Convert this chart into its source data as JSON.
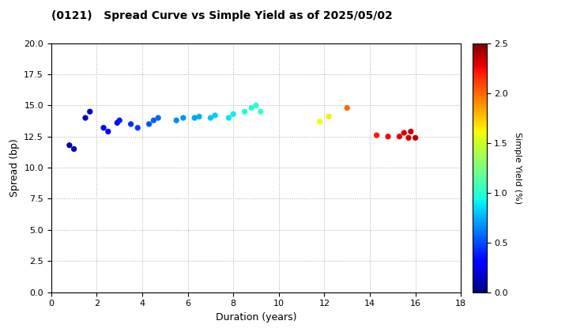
{
  "title": "(0121)   Spread Curve vs Simple Yield as of 2025/05/02",
  "xlabel": "Duration (years)",
  "ylabel": "Spread (bp)",
  "colorbar_label": "Simple Yield (%)",
  "xlim": [
    0,
    18
  ],
  "ylim": [
    0.0,
    20.0
  ],
  "yticks": [
    0.0,
    2.5,
    5.0,
    7.5,
    10.0,
    12.5,
    15.0,
    17.5,
    20.0
  ],
  "xticks": [
    0,
    2,
    4,
    6,
    8,
    10,
    12,
    14,
    16,
    18
  ],
  "colorbar_range": [
    0.0,
    2.5
  ],
  "colorbar_ticks": [
    0.0,
    0.5,
    1.0,
    1.5,
    2.0,
    2.5
  ],
  "points": [
    {
      "duration": 0.8,
      "spread": 11.8,
      "yield": 0.12
    },
    {
      "duration": 1.0,
      "spread": 11.5,
      "yield": 0.13
    },
    {
      "duration": 1.5,
      "spread": 14.0,
      "yield": 0.18
    },
    {
      "duration": 1.7,
      "spread": 14.5,
      "yield": 0.2
    },
    {
      "duration": 2.3,
      "spread": 13.2,
      "yield": 0.27
    },
    {
      "duration": 2.5,
      "spread": 12.9,
      "yield": 0.3
    },
    {
      "duration": 2.9,
      "spread": 13.6,
      "yield": 0.35
    },
    {
      "duration": 3.0,
      "spread": 13.8,
      "yield": 0.38
    },
    {
      "duration": 3.5,
      "spread": 13.5,
      "yield": 0.43
    },
    {
      "duration": 3.8,
      "spread": 13.2,
      "yield": 0.46
    },
    {
      "duration": 4.3,
      "spread": 13.5,
      "yield": 0.52
    },
    {
      "duration": 4.5,
      "spread": 13.8,
      "yield": 0.55
    },
    {
      "duration": 4.7,
      "spread": 14.0,
      "yield": 0.57
    },
    {
      "duration": 5.5,
      "spread": 13.8,
      "yield": 0.65
    },
    {
      "duration": 5.8,
      "spread": 14.0,
      "yield": 0.68
    },
    {
      "duration": 6.3,
      "spread": 14.0,
      "yield": 0.72
    },
    {
      "duration": 6.5,
      "spread": 14.1,
      "yield": 0.74
    },
    {
      "duration": 7.0,
      "spread": 14.0,
      "yield": 0.8
    },
    {
      "duration": 7.2,
      "spread": 14.2,
      "yield": 0.82
    },
    {
      "duration": 7.8,
      "spread": 14.0,
      "yield": 0.88
    },
    {
      "duration": 8.0,
      "spread": 14.3,
      "yield": 0.9
    },
    {
      "duration": 8.5,
      "spread": 14.5,
      "yield": 0.95
    },
    {
      "duration": 8.8,
      "spread": 14.8,
      "yield": 0.98
    },
    {
      "duration": 9.0,
      "spread": 15.0,
      "yield": 1.0
    },
    {
      "duration": 9.2,
      "spread": 14.5,
      "yield": 1.03
    },
    {
      "duration": 11.8,
      "spread": 13.7,
      "yield": 1.6
    },
    {
      "duration": 12.2,
      "spread": 14.1,
      "yield": 1.65
    },
    {
      "duration": 13.0,
      "spread": 14.8,
      "yield": 2.0
    },
    {
      "duration": 14.3,
      "spread": 12.6,
      "yield": 2.2
    },
    {
      "duration": 14.8,
      "spread": 12.5,
      "yield": 2.25
    },
    {
      "duration": 15.3,
      "spread": 12.5,
      "yield": 2.28
    },
    {
      "duration": 15.5,
      "spread": 12.8,
      "yield": 2.3
    },
    {
      "duration": 15.7,
      "spread": 12.4,
      "yield": 2.32
    },
    {
      "duration": 15.8,
      "spread": 12.9,
      "yield": 2.35
    },
    {
      "duration": 16.0,
      "spread": 12.4,
      "yield": 2.38
    }
  ]
}
